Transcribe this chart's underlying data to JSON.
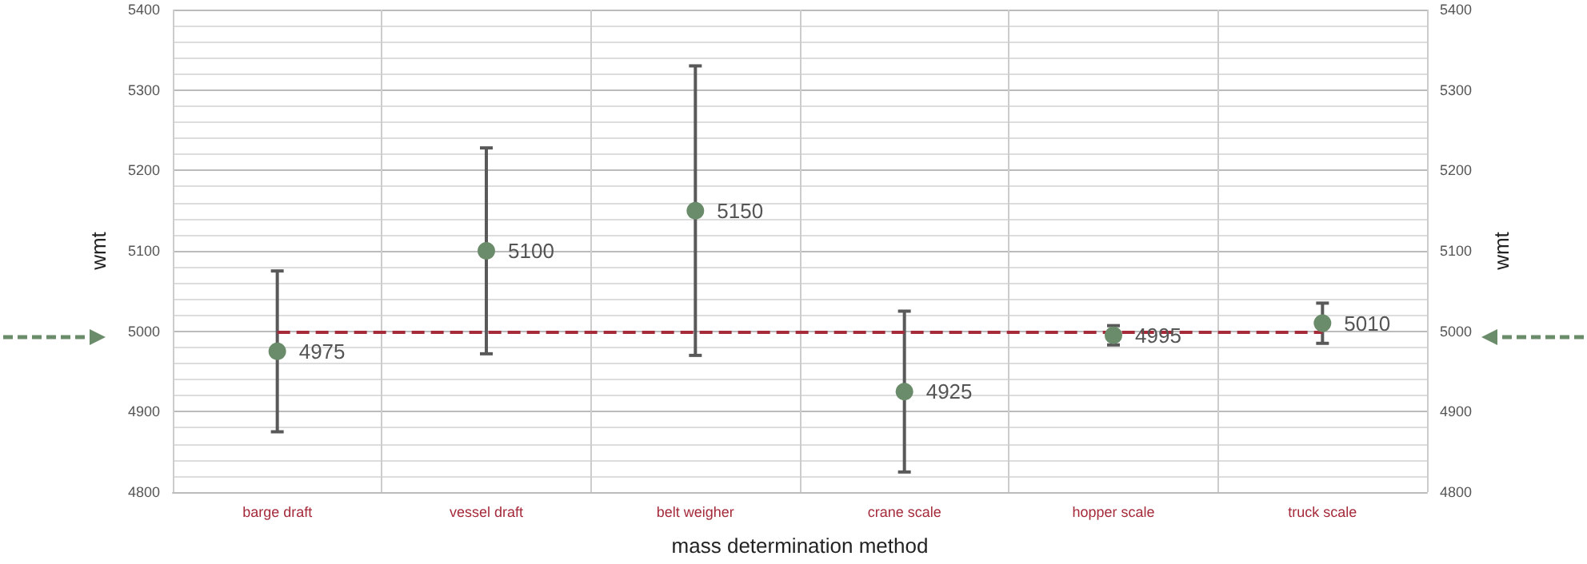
{
  "chart_data": {
    "type": "scatter",
    "xlabel": "mass determination method",
    "ylabel": "wmt",
    "y2label": "wmt",
    "categories": [
      "barge draft",
      "vessel draft",
      "belt weigher",
      "crane scale",
      "hopper scale",
      "truck scale"
    ],
    "series": [
      {
        "color": "#6b8c6b",
        "values": [
          4975,
          5100,
          5150,
          4925,
          4995,
          5010
        ],
        "errors": [
          100,
          [
            4972,
            5228
          ],
          180,
          100,
          12,
          25
        ]
      }
    ],
    "ylim": [
      4800,
      5400
    ],
    "yticks": [
      4800,
      4900,
      5000,
      5100,
      5200,
      5300,
      5400
    ],
    "y2lim": [
      4800,
      5400
    ],
    "y2ticks": [
      4800,
      4900,
      5000,
      5100,
      5200,
      5300,
      5400
    ],
    "ref_lines": [
      {
        "axis": "y",
        "value": 5000,
        "color": "#a52a3a",
        "line_style": "dashed"
      }
    ],
    "marker": "circle",
    "data_labels": true,
    "grid": true
  }
}
